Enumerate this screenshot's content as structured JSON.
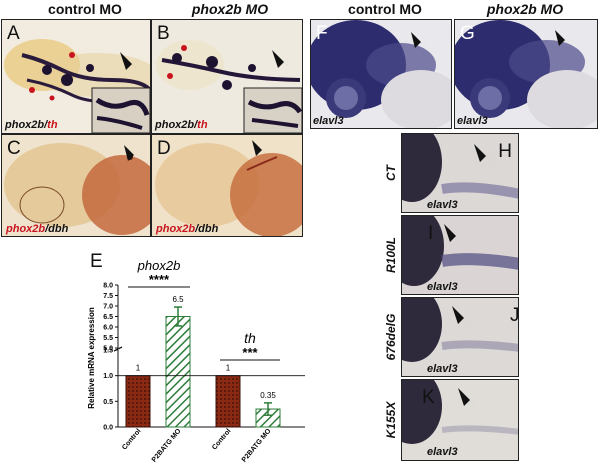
{
  "columns": {
    "control": "control MO",
    "phox2b": "phox2b MO",
    "control_right": "control MO",
    "phox2b_right": "phox2b MO"
  },
  "panels": {
    "A": {
      "letter": "A",
      "label_red": "th",
      "label_dark": "phox2b/"
    },
    "B": {
      "letter": "B",
      "label_red": "th",
      "label_dark": "phox2b/"
    },
    "C": {
      "letter": "C",
      "label_red": "phox2b",
      "label_dark": "/dbh"
    },
    "D": {
      "letter": "D",
      "label_red": "phox2b",
      "label_dark": "/dbh"
    },
    "F": {
      "letter": "F",
      "label": "elavl3"
    },
    "G": {
      "letter": "G",
      "label": "elavl3"
    },
    "H": {
      "letter": "H",
      "label": "elavl3",
      "row": "CT"
    },
    "I": {
      "letter": "I",
      "label": "elavl3",
      "row": "R100L"
    },
    "J": {
      "letter": "J",
      "label": "elavl3",
      "row": "676delG"
    },
    "K": {
      "letter": "K",
      "label": "elavl3",
      "row": "K155X"
    }
  },
  "panel_E": {
    "letter": "E",
    "gene1": "phox2b",
    "gene2": "th",
    "sig1": "****",
    "sig2": "***"
  },
  "chart_data": {
    "type": "bar",
    "ylabel": "Relative mRNA expression",
    "categories": [
      "Control",
      "P2BATG MO",
      "Control",
      "P2BATG MO"
    ],
    "groups": [
      "phox2b",
      "th"
    ],
    "values": [
      1,
      6.5,
      1,
      0.35
    ],
    "value_labels": [
      "1",
      "6.5",
      "1",
      "0.35"
    ],
    "errors": [
      0,
      0.45,
      0,
      0.12
    ],
    "axis_break": [
      1.5,
      5.0
    ],
    "yticks_lower": [
      "0.0",
      "0.5",
      "1.0",
      "1.5"
    ],
    "yticks_upper": [
      "5.0",
      "5.5",
      "6.0",
      "6.5",
      "7.0",
      "7.5",
      "8.0"
    ],
    "colors": {
      "control": "#8b2a14",
      "mo": "#2e7d3a"
    }
  }
}
